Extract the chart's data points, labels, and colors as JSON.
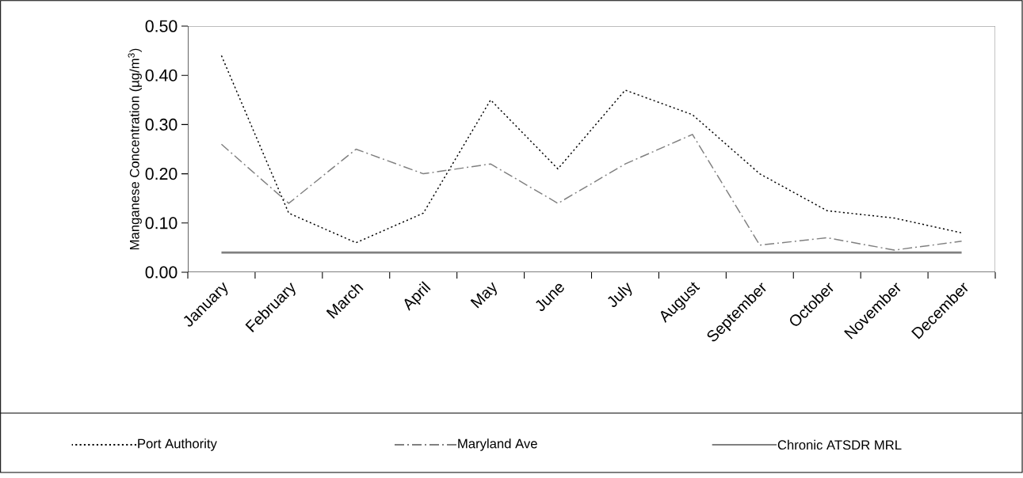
{
  "chart_data": {
    "type": "line",
    "ylabel": "Manganese Concentration (µg/m$^{3}$)",
    "categories": [
      "January",
      "February",
      "March",
      "April",
      "May",
      "June",
      "July",
      "August",
      "September",
      "October",
      "November",
      "December"
    ],
    "series": [
      {
        "name": "Port Authority",
        "color": "#000000",
        "line_style": "dotted",
        "values": [
          0.44,
          0.12,
          0.06,
          0.12,
          0.35,
          0.21,
          0.37,
          0.32,
          0.2,
          0.125,
          0.11,
          0.08
        ]
      },
      {
        "name": "Maryland Ave",
        "color": "#808080",
        "line_style": "dashed",
        "values": [
          0.26,
          0.14,
          0.25,
          0.2,
          0.22,
          0.14,
          0.22,
          0.28,
          0.055,
          0.07,
          0.045,
          0.063
        ]
      },
      {
        "name": "Chronic ATSDR MRL",
        "color": "#808080",
        "line_style": "solid",
        "values": [
          0.04,
          0.04,
          0.04,
          0.04,
          0.04,
          0.04,
          0.04,
          0.04,
          0.04,
          0.04,
          0.04,
          0.04
        ]
      }
    ],
    "ylim": [
      0,
      0.5
    ],
    "yticks": [
      {
        "value": 0,
        "label": "0.00"
      },
      {
        "value": 0.1,
        "label": "0.10"
      },
      {
        "value": 0.2,
        "label": "0.20"
      },
      {
        "value": 0.3,
        "label": "0.30"
      },
      {
        "value": 0.4,
        "label": "0.40"
      },
      {
        "value": 0.5,
        "label": "0.50"
      }
    ],
    "legend": "bottom",
    "grid": false,
    "marker": "none"
  }
}
